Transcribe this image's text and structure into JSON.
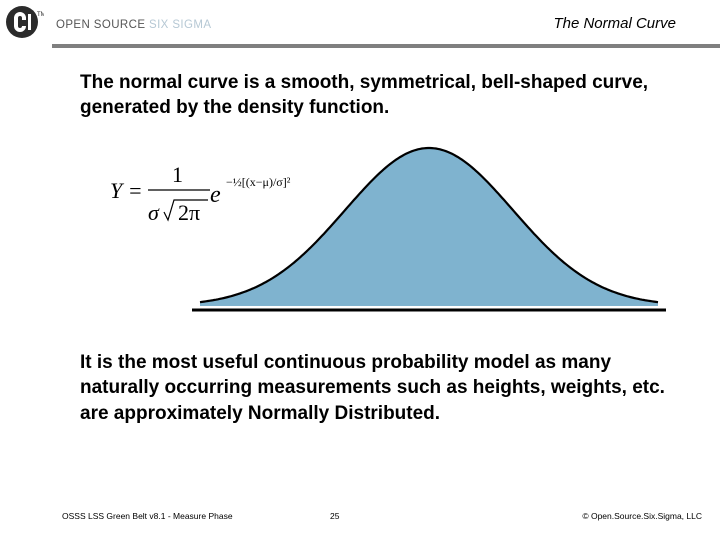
{
  "header": {
    "logo_text_main": "OPEN SOURCE",
    "logo_text_accent": "SIX SIGMA",
    "title": "The Normal Curve"
  },
  "body": {
    "paragraph_1": "The normal curve is a smooth, symmetrical, bell-shaped curve, generated by the density function.",
    "paragraph_2": "It is the most useful continuous probability model as many naturally occurring measurements such as heights, weights, etc. are approximately Normally Distributed."
  },
  "formula": {
    "lhs": "Y =",
    "numerator": "1",
    "denominator_sigma": "σ",
    "denominator_root": "2π",
    "base": "e",
    "exponent": "−½[(x−μ)/σ]²"
  },
  "figure": {
    "fill_color": "#7fb3cf",
    "stroke_color": "#000000",
    "figure_type": "bell-shaped normal curve, shaded under the curve"
  },
  "footer": {
    "left": "OSSS LSS Green Belt v8.1 - Measure Phase",
    "page_number": "25",
    "right": "© Open.Source.Six.Sigma, LLC"
  }
}
